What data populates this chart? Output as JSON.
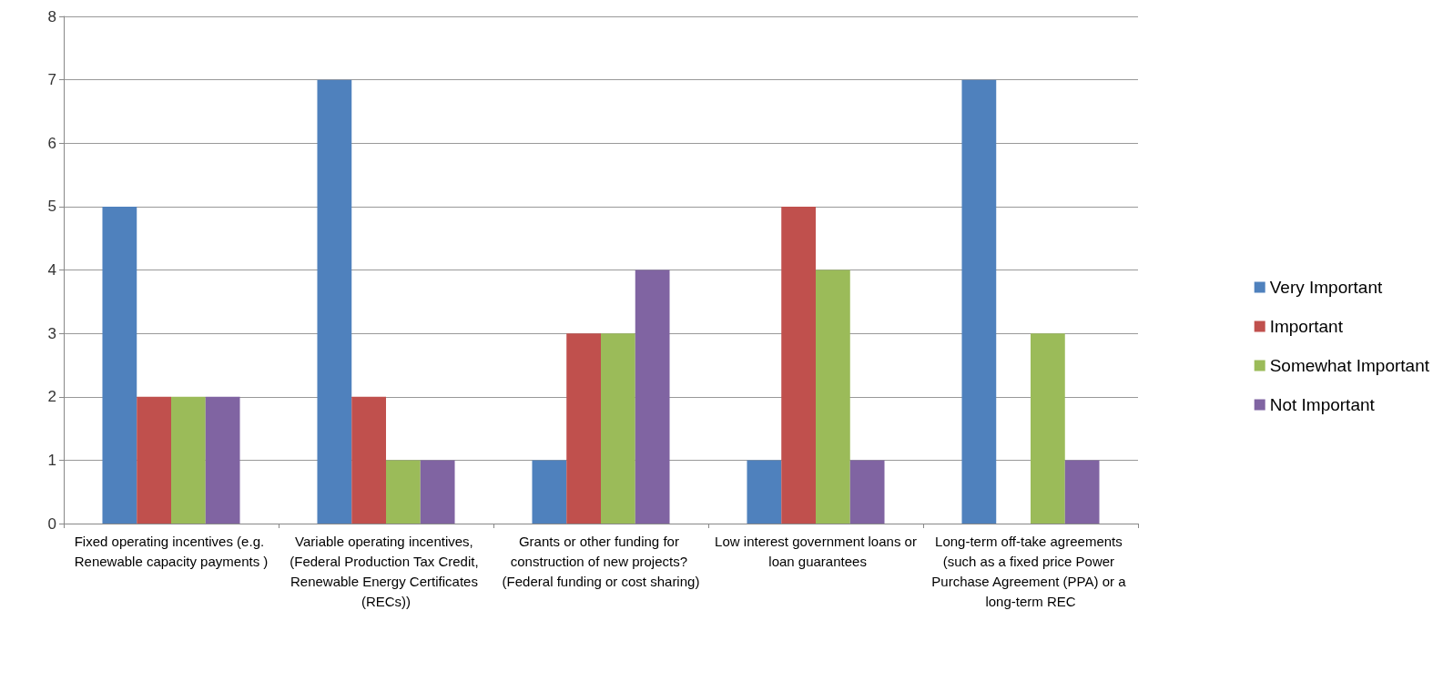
{
  "chart_data": {
    "type": "bar",
    "categories": [
      "Fixed operating incentives (e.g. Renewable capacity payments )",
      "Variable operating incentives, (Federal Production Tax Credit, Renewable Energy Certificates (RECs))",
      "Grants or other funding for construction of new projects? (Federal funding or cost sharing)",
      "Low interest government loans or loan guarantees",
      "Long-term off-take agreements (such as a fixed price Power Purchase Agreement (PPA) or a long-term REC"
    ],
    "series": [
      {
        "name": "Very Important",
        "color": "#4f81bd",
        "values": [
          5,
          7,
          1,
          1,
          7
        ]
      },
      {
        "name": "Important",
        "color": "#c0504d",
        "values": [
          2,
          2,
          3,
          5,
          0
        ]
      },
      {
        "name": "Somewhat Important",
        "color": "#9bbb59",
        "values": [
          2,
          1,
          3,
          4,
          3
        ]
      },
      {
        "name": "Not Important",
        "color": "#8064a2",
        "values": [
          2,
          1,
          4,
          1,
          1
        ]
      }
    ],
    "ylim": [
      0,
      8
    ],
    "yticks": [
      0,
      1,
      2,
      3,
      4,
      5,
      6,
      7,
      8
    ],
    "grid": "y",
    "legend": "right"
  }
}
